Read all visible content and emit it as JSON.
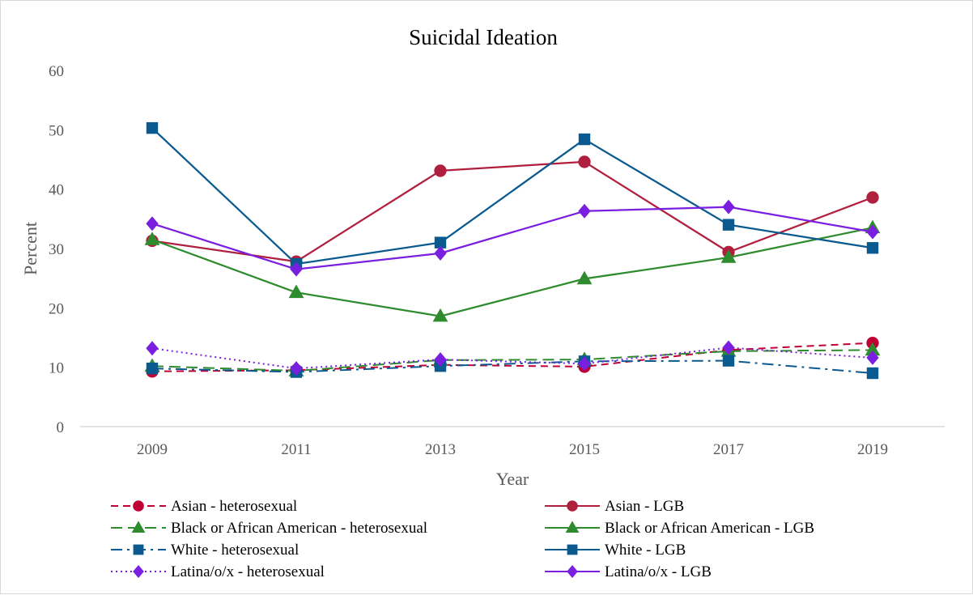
{
  "chart_data": {
    "type": "line",
    "title": "Suicidal Ideation",
    "xlabel": "Year",
    "ylabel": "Percent",
    "categories": [
      "2009",
      "2011",
      "2013",
      "2015",
      "2017",
      "2019"
    ],
    "ylim": [
      0,
      60
    ],
    "yticks": [
      0,
      10,
      20,
      30,
      40,
      50,
      60
    ],
    "grid": false,
    "legend_position": "bottom",
    "series": [
      {
        "name": "Asian - heterosexual",
        "values": [
          9.3,
          9.5,
          10.4,
          10.1,
          12.9,
          14.1
        ],
        "color": "#C00035",
        "dash": "dashed",
        "marker": "circle"
      },
      {
        "name": "Asian - LGB",
        "values": [
          31.3,
          27.8,
          43.1,
          44.6,
          29.4,
          38.6
        ],
        "color": "#B01F3E",
        "dash": "solid",
        "marker": "circle"
      },
      {
        "name": "Black or African American - heterosexual",
        "values": [
          10.2,
          9.4,
          11.2,
          11.3,
          12.7,
          12.9
        ],
        "color": "#2E8B2E",
        "dash": "longdash",
        "marker": "triangle"
      },
      {
        "name": "Black or African American - LGB",
        "values": [
          31.5,
          22.6,
          18.6,
          24.9,
          28.5,
          33.5
        ],
        "color": "#2E8B2E",
        "dash": "solid",
        "marker": "triangle"
      },
      {
        "name": "White - heterosexual",
        "values": [
          9.8,
          9.2,
          10.2,
          11.0,
          11.1,
          9.0
        ],
        "color": "#0B5A8F",
        "dash": "dashdot",
        "marker": "square"
      },
      {
        "name": "White - LGB",
        "values": [
          50.3,
          27.4,
          31.0,
          48.4,
          34.0,
          30.1
        ],
        "color": "#0B5A8F",
        "dash": "solid",
        "marker": "square"
      },
      {
        "name": "Latina/o/x - heterosexual",
        "values": [
          13.2,
          9.8,
          11.3,
          10.6,
          13.3,
          11.6
        ],
        "color": "#7A1FE0",
        "dash": "dotted",
        "marker": "diamond"
      },
      {
        "name": "Latina/o/x - LGB",
        "values": [
          34.2,
          26.5,
          29.2,
          36.3,
          37.0,
          32.8
        ],
        "color": "#7A1FE0",
        "dash": "solid",
        "marker": "diamond"
      }
    ]
  }
}
